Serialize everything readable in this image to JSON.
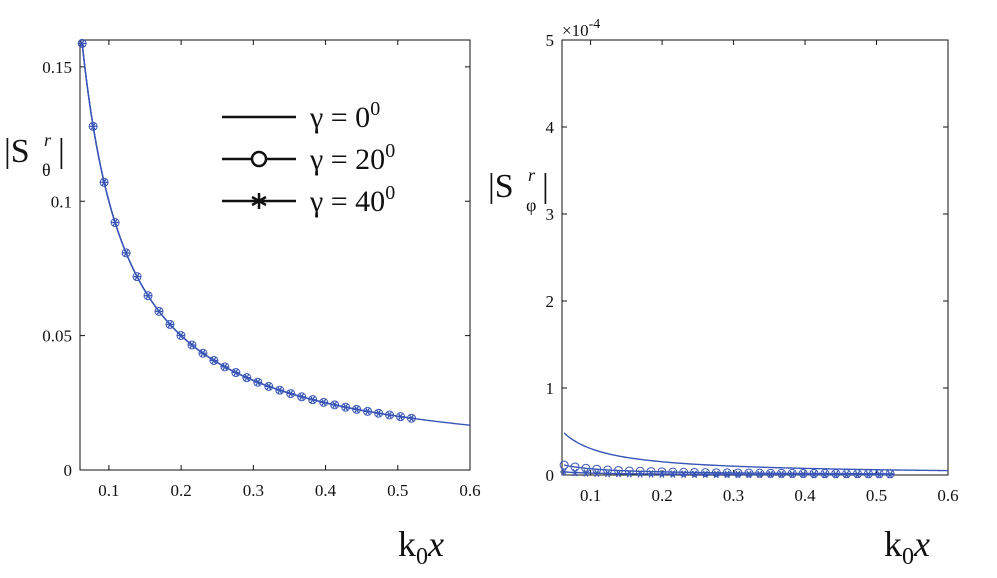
{
  "chart_data": [
    {
      "type": "line",
      "ylabel": "|S^r_θ|",
      "xlabel": "k0x",
      "xlim": [
        0.06,
        0.6
      ],
      "ylim": [
        0,
        0.16
      ],
      "xticks": [
        "0.1",
        "0.2",
        "0.3",
        "0.4",
        "0.5",
        "0.6"
      ],
      "yticks": [
        "0",
        "0.05",
        "0.1",
        "0.15"
      ],
      "series": [
        {
          "name": "γ = 0°",
          "marker": "none",
          "x_start": 0.063,
          "x_end": 0.6,
          "coef": 0.01
        },
        {
          "name": "γ = 20°",
          "marker": "circle",
          "x_start": 0.063,
          "x_end": 0.525,
          "coef": 0.01
        },
        {
          "name": "γ = 40°",
          "marker": "star",
          "x_start": 0.063,
          "x_end": 0.525,
          "coef": 0.01
        }
      ],
      "legend": {
        "position": "top-right",
        "entries": [
          {
            "gamma": "γ = 0",
            "exp": "0",
            "marker": "none"
          },
          {
            "gamma": "γ = 20",
            "exp": "0",
            "marker": "circle"
          },
          {
            "gamma": "γ = 40",
            "exp": "0",
            "marker": "star"
          }
        ]
      }
    },
    {
      "type": "line",
      "ylabel": "|S^r_φ|",
      "xlabel": "k0x",
      "scale_label": "×10",
      "scale_exp": "-4",
      "xlim": [
        0.06,
        0.6
      ],
      "ylim": [
        0,
        5
      ],
      "xticks": [
        "0.1",
        "0.2",
        "0.3",
        "0.4",
        "0.5",
        "0.6"
      ],
      "yticks": [
        "0",
        "1",
        "2",
        "3",
        "4",
        "5"
      ],
      "series": [
        {
          "name": "γ = 0°",
          "marker": "none",
          "x_start": 0.063,
          "x_end": 0.6,
          "coef": 0.0304
        },
        {
          "name": "γ = 20°",
          "marker": "circle",
          "x_start": 0.063,
          "x_end": 0.525,
          "coef": 0.0072
        },
        {
          "name": "γ = 40°",
          "marker": "star",
          "x_start": 0.063,
          "x_end": 0.525,
          "coef": 0.0022
        }
      ]
    }
  ],
  "colors": {
    "line": "#3a57b7",
    "axis": "#111111"
  }
}
